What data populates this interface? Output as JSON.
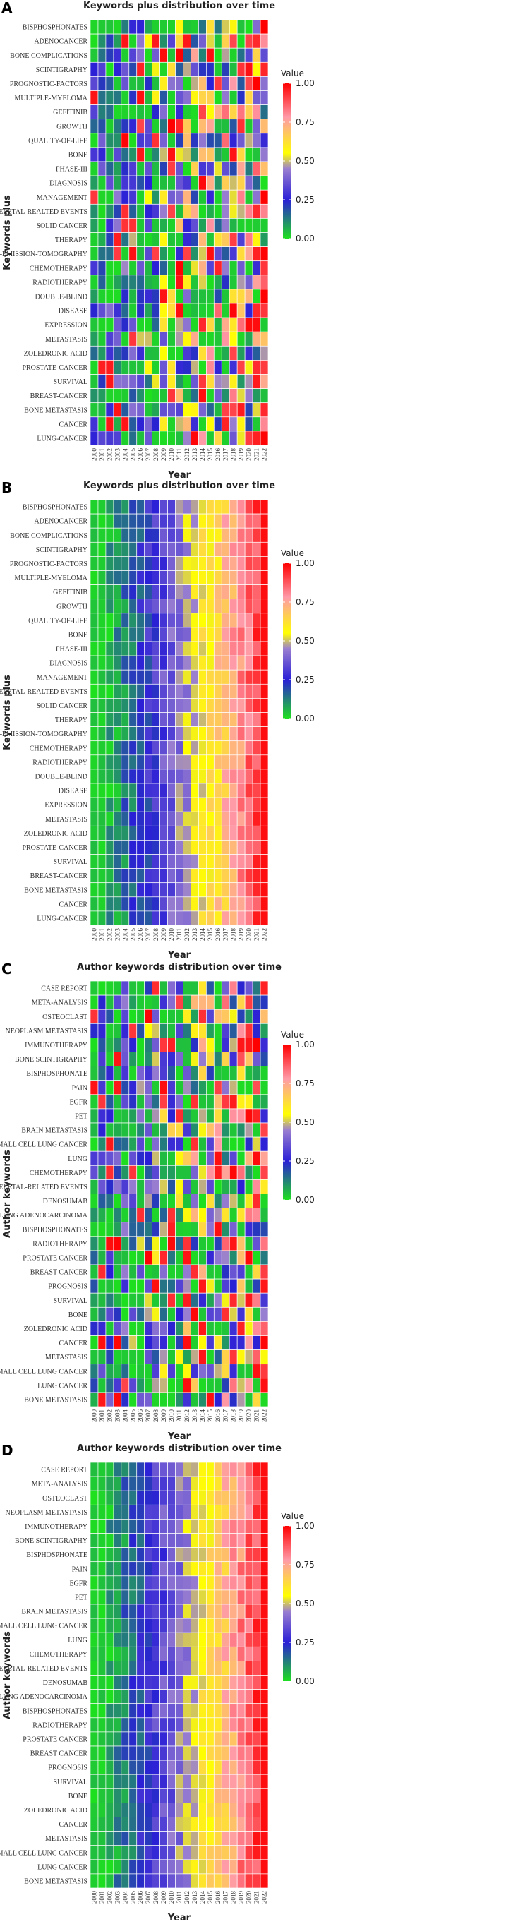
{
  "chart_data": [
    {
      "type": "heatmap",
      "panel": "A",
      "title": "Keywords plus distribution over time",
      "xlabel": "Year",
      "ylabel": "Keywords plus",
      "legend_title": "Value",
      "legend_ticks": [
        "1.00",
        "0.75",
        "0.50",
        "0.25",
        "0.00"
      ],
      "value_range": [
        0,
        1
      ],
      "mode": "scattered",
      "seed": 11,
      "x": [
        "2000",
        "2001",
        "2002",
        "2003",
        "2004",
        "2005",
        "2006",
        "2007",
        "2008",
        "2009",
        "2010",
        "2011",
        "2012",
        "2013",
        "2014",
        "2015",
        "2016",
        "2017",
        "2018",
        "2019",
        "2020",
        "2021",
        "2022"
      ],
      "y": [
        "BISPHOSPHONATES",
        "ADENOCANCER",
        "BONE COMPLICATIONS",
        "SCINTIGRAPHY",
        "PROGNOSTIC-FACTORS",
        "MULTIPLE-MYELOMA",
        "GEFITINIB",
        "GROWTH",
        "QUALITY-OF-LIFE",
        "BONE",
        "PHASE-III",
        "DIAGNOSIS",
        "MANAGEMENT",
        "SKELETAL-REALTED EVENTS",
        "SOLID CANCER",
        "THERAPY",
        "POSITRON-EMISSION-TOMOGRAPHY",
        "CHEMOTHERAPY",
        "RADIOTHERAPY",
        "DOUBLE-BLIND",
        "DISEASE",
        "EXPRESSION",
        "METASTASIS",
        "ZOLEDRONIC ACID",
        "PROSTATE-CANCER",
        "SURVIVAL",
        "BREAST-CANCER",
        "BONE METASTASIS",
        "CANCER",
        "LUNG-CANCER"
      ]
    },
    {
      "type": "heatmap",
      "panel": "B",
      "title": "Keywords plus distribution over time",
      "xlabel": "Year",
      "ylabel": "Keywords plus",
      "legend_title": "Value",
      "legend_ticks": [
        "1.00",
        "0.75",
        "0.50",
        "0.25",
        "0.00"
      ],
      "value_range": [
        0,
        1
      ],
      "mode": "cumulative",
      "seed": 23,
      "x": [
        "2000",
        "2001",
        "2002",
        "2003",
        "2004",
        "2005",
        "2006",
        "2007",
        "2008",
        "2009",
        "2010",
        "2011",
        "2012",
        "2013",
        "2014",
        "2015",
        "2016",
        "2017",
        "2018",
        "2019",
        "2020",
        "2021",
        "2022"
      ],
      "y": [
        "BISPHOSPHONATES",
        "ADENOCANCER",
        "BONE COMPLICATIONS",
        "SCINTIGRAPHY",
        "PROGNOSTIC-FACTORS",
        "MULTIPLE-MYELOMA",
        "GEFITINIB",
        "GROWTH",
        "QUALITY-OF-LIFE",
        "BONE",
        "PHASE-III",
        "DIAGNOSIS",
        "MANAGEMENT",
        "SKELETAL-REALTED EVENTS",
        "SOLID CANCER",
        "THERAPY",
        "POSITRON-EMISSION-TOMOGRAPHY",
        "CHEMOTHERAPY",
        "RADIOTHERAPY",
        "DOUBLE-BLIND",
        "DISEASE",
        "EXPRESSION",
        "METASTASIS",
        "ZOLEDRONIC ACID",
        "PROSTATE-CANCER",
        "SURVIVAL",
        "BREAST-CANCER",
        "BONE METASTASIS",
        "CANCER",
        "LUNG-CANCER"
      ]
    },
    {
      "type": "heatmap",
      "panel": "C",
      "title": "Author keywords distribution over time",
      "xlabel": "Year",
      "ylabel": "Author keywords",
      "legend_title": "Value",
      "legend_ticks": [
        "1.00",
        "0.75",
        "0.50",
        "0.25",
        "0.00"
      ],
      "value_range": [
        0,
        1
      ],
      "mode": "scattered",
      "seed": 37,
      "x": [
        "2000",
        "2001",
        "2002",
        "2003",
        "2004",
        "2005",
        "2006",
        "2007",
        "2008",
        "2009",
        "2010",
        "2011",
        "2012",
        "2013",
        "2014",
        "2015",
        "2016",
        "2017",
        "2018",
        "2019",
        "2020",
        "2021",
        "2022"
      ],
      "y": [
        "CASE REPORT",
        "META-ANALYSIS",
        "OSTEOCLAST",
        "NEOPLASM METASTASIS",
        "IMMUNOTHERAPY",
        "BONE SCINTIGRAPHY",
        "BISPHOSPHONATE",
        "PAIN",
        "EGFR",
        "PET",
        "BRAIN METASTASIS",
        "SMALL CELL LUNG CANCER",
        "LUNG",
        "CHEMOTHERAPY",
        "SKELETAL-RELATED EVENTS",
        "DENOSUMAB",
        "LUNG ADENOCARCINOMA",
        "BISPHOSPHONATES",
        "RADIOTHERAPY",
        "PROSTATE CANCER",
        "BREAST CANCER",
        "PROGNOSIS",
        "SURVIVAL",
        "BONE",
        "ZOLEDRONIC ACID",
        "CANCER",
        "METASTASIS",
        "NON SMALL CELL LUNG CANCER",
        "LUNG CANCER",
        "BONE METASTASIS"
      ]
    },
    {
      "type": "heatmap",
      "panel": "D",
      "title": "Author keywords distribution over time",
      "xlabel": "Year",
      "ylabel": "Author keywords",
      "legend_title": "Value",
      "legend_ticks": [
        "1.00",
        "0.75",
        "0.50",
        "0.25",
        "0.00"
      ],
      "value_range": [
        0,
        1
      ],
      "mode": "cumulative",
      "seed": 51,
      "x": [
        "2000",
        "2001",
        "2002",
        "2003",
        "2004",
        "2005",
        "2006",
        "2007",
        "2008",
        "2009",
        "2010",
        "2011",
        "2012",
        "2013",
        "2014",
        "2015",
        "2016",
        "2017",
        "2018",
        "2019",
        "2020",
        "2021",
        "2022"
      ],
      "y": [
        "CASE REPORT",
        "META-ANALYSIS",
        "OSTEOCLAST",
        "NEOPLASM METASTASIS",
        "IMMUNOTHERAPY",
        "BONE SCINTIGRAPHY",
        "BISPHOSPHONATE",
        "PAIN",
        "EGFR",
        "PET",
        "BRAIN METASTASIS",
        "SMALL CELL LUNG CANCER",
        "LUNG",
        "CHEMOTHERAPY",
        "SKELETAL-RELATED EVENTS",
        "DENOSUMAB",
        "LUNG ADENOCARCINOMA",
        "BISPHOSPHONATES",
        "RADIOTHERAPY",
        "PROSTATE CANCER",
        "BREAST CANCER",
        "PROGNOSIS",
        "SURVIVAL",
        "BONE",
        "ZOLEDRONIC ACID",
        "CANCER",
        "METASTASIS",
        "NON SMALL CELL LUNG CANCER",
        "LUNG CANCER",
        "BONE METASTASIS"
      ]
    }
  ],
  "colors": {
    "scale": [
      "#1ee01e",
      "#2a1fd6",
      "#9a7fd0",
      "#ffff00",
      "#ff9aa8",
      "#ff0000"
    ],
    "grid": "#ffffff"
  }
}
